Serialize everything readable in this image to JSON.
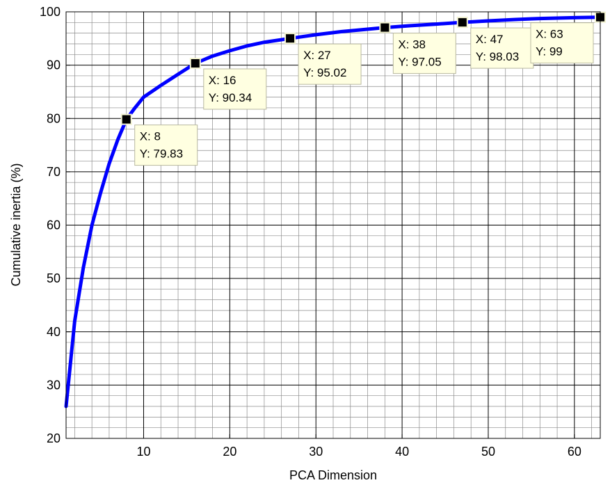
{
  "chart_data": {
    "type": "line",
    "title": "",
    "xlabel": "PCA Dimension",
    "ylabel": "Cumulative inertia (%)",
    "xlim": [
      1,
      63
    ],
    "ylim": [
      20,
      100
    ],
    "x_ticks": [
      10,
      20,
      30,
      40,
      50,
      60
    ],
    "y_ticks": [
      20,
      30,
      40,
      50,
      60,
      70,
      80,
      90,
      100
    ],
    "grid": true,
    "minor_grid": true,
    "line_color": "#0000ff",
    "series": [
      {
        "x": [
          1,
          2,
          3,
          4,
          5,
          6,
          7,
          8,
          9,
          10,
          12,
          14,
          16,
          18,
          20,
          22,
          24,
          27,
          30,
          33,
          35,
          38,
          41,
          44,
          47,
          50,
          53,
          56,
          60,
          63
        ],
        "values": [
          26,
          42,
          52,
          60,
          66,
          71.5,
          76,
          79.83,
          82,
          84,
          86.2,
          88.3,
          90.34,
          91.7,
          92.7,
          93.6,
          94.3,
          95.02,
          95.7,
          96.3,
          96.6,
          97.05,
          97.4,
          97.7,
          98.03,
          98.3,
          98.55,
          98.75,
          98.9,
          99
        ]
      }
    ],
    "datatips": [
      {
        "x": 8,
        "y": 79.83,
        "x_text": "X: 8",
        "y_text": "Y: 79.83"
      },
      {
        "x": 16,
        "y": 90.34,
        "x_text": "X: 16",
        "y_text": "Y: 90.34"
      },
      {
        "x": 27,
        "y": 95.02,
        "x_text": "X: 27",
        "y_text": "Y: 95.02"
      },
      {
        "x": 38,
        "y": 97.05,
        "x_text": "X: 38",
        "y_text": "Y: 97.05"
      },
      {
        "x": 47,
        "y": 98.03,
        "x_text": "X: 47",
        "y_text": "Y: 98.03"
      },
      {
        "x": 63,
        "y": 99,
        "x_text": "X: 63",
        "y_text": "Y: 99"
      }
    ]
  }
}
